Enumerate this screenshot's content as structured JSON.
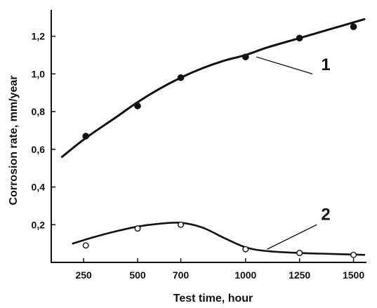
{
  "chart_data": {
    "type": "scatter",
    "xlabel": "Test time, hour",
    "ylabel": "Corrosion rate, mm/year",
    "xlim": [
      100,
      1560
    ],
    "ylim": [
      0,
      1.34
    ],
    "x_ticks": [
      {
        "value": 250,
        "label": "250"
      },
      {
        "value": 500,
        "label": "500"
      },
      {
        "value": 700,
        "label": "700"
      },
      {
        "value": 1000,
        "label": "1000"
      },
      {
        "value": 1250,
        "label": "1250"
      },
      {
        "value": 1500,
        "label": "1500"
      }
    ],
    "y_ticks": [
      {
        "value": 0.2,
        "label": "0,2"
      },
      {
        "value": 0.4,
        "label": "0,4"
      },
      {
        "value": 0.6,
        "label": "0,6"
      },
      {
        "value": 0.8,
        "label": "0,8"
      },
      {
        "value": 1.0,
        "label": "1,0"
      },
      {
        "value": 1.2,
        "label": "1,2"
      }
    ],
    "grid": false,
    "series": [
      {
        "name": "1",
        "marker": "filled",
        "x": [
          260,
          500,
          700,
          1000,
          1250,
          1500
        ],
        "y": [
          0.67,
          0.83,
          0.98,
          1.09,
          1.19,
          1.25
        ],
        "curve_x": [
          150,
          260,
          400,
          500,
          600,
          700,
          800,
          900,
          1000,
          1100,
          1250,
          1400,
          1550
        ],
        "curve_y": [
          0.56,
          0.66,
          0.77,
          0.85,
          0.92,
          0.98,
          1.03,
          1.07,
          1.1,
          1.14,
          1.19,
          1.24,
          1.29
        ],
        "label_pos": {
          "x": 1350,
          "y": 1.02
        },
        "leader": [
          [
            1050,
            1.09
          ],
          [
            1310,
            1.0
          ]
        ]
      },
      {
        "name": "2",
        "marker": "open",
        "x": [
          260,
          500,
          700,
          1000,
          1250,
          1500
        ],
        "y": [
          0.09,
          0.18,
          0.2,
          0.07,
          0.05,
          0.04
        ],
        "curve_x": [
          200,
          300,
          400,
          500,
          600,
          700,
          800,
          900,
          1000,
          1100,
          1250,
          1400,
          1550
        ],
        "curve_y": [
          0.1,
          0.135,
          0.165,
          0.19,
          0.205,
          0.21,
          0.185,
          0.13,
          0.08,
          0.06,
          0.05,
          0.045,
          0.04
        ],
        "label_pos": {
          "x": 1350,
          "y": 0.225
        },
        "leader": [
          [
            1100,
            0.07
          ],
          [
            1330,
            0.2
          ]
        ]
      }
    ]
  }
}
